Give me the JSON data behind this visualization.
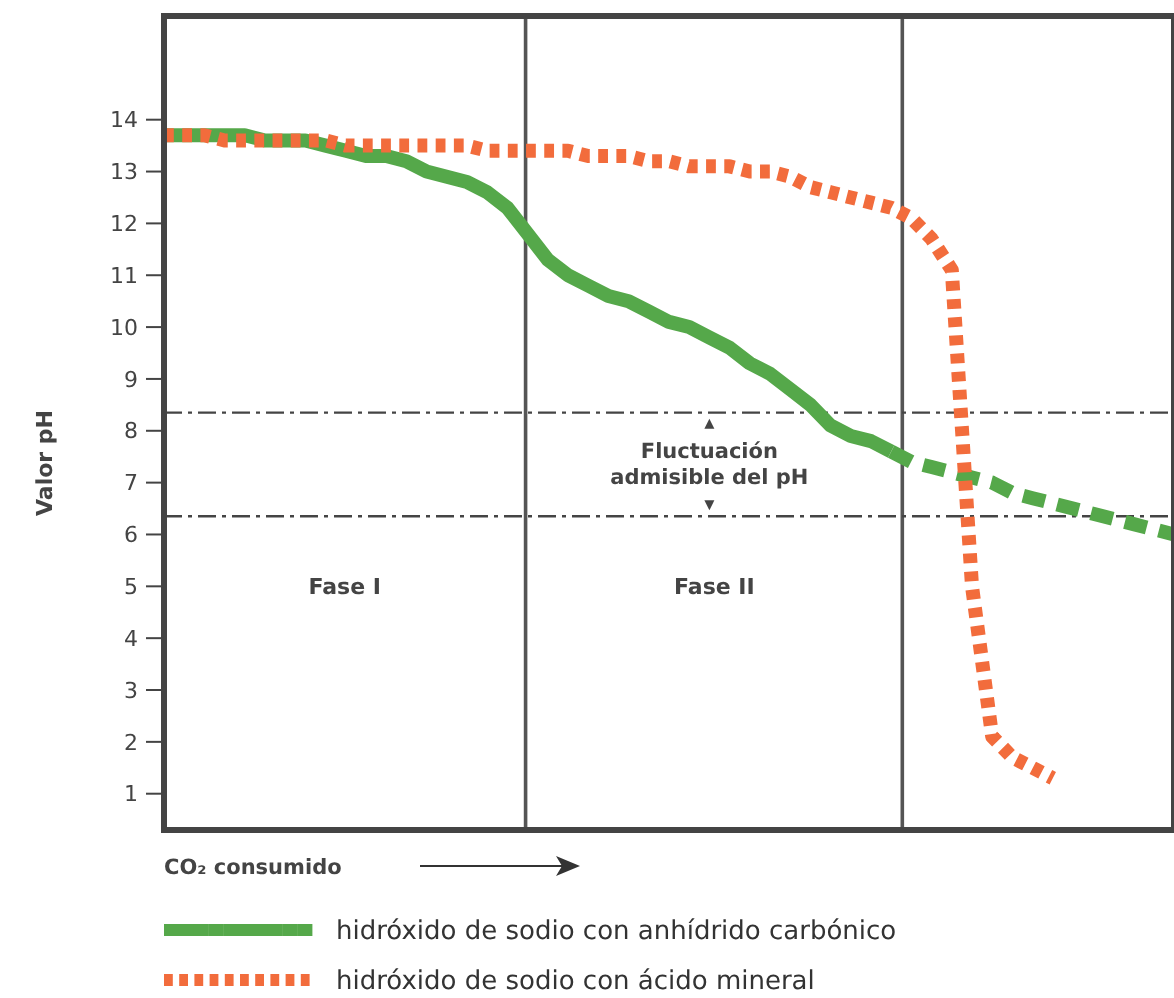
{
  "chart_data": {
    "type": "line",
    "xlabel": "CO₂ consumido",
    "ylabel": "Valor pH",
    "categories": [
      null,
      null,
      null,
      null,
      null,
      null,
      null,
      null,
      null,
      null,
      null,
      null,
      null,
      null,
      null,
      null,
      null,
      null,
      null,
      null,
      null,
      null,
      null,
      null,
      null,
      null,
      null,
      null,
      null,
      null,
      null,
      null,
      null,
      null,
      null,
      null,
      null,
      null,
      null,
      null,
      null,
      null,
      null,
      null,
      null,
      null,
      null,
      null,
      null,
      null,
      null
    ],
    "ylim": [
      0.3,
      16
    ],
    "yticks": [
      1,
      2,
      3,
      4,
      5,
      6,
      7,
      8,
      9,
      10,
      11,
      12,
      13,
      14
    ],
    "grid": false,
    "legend": "bottom",
    "marker": "none",
    "series": [
      {
        "name": "hidróxido de sodio con anhídrido carbónico",
        "color": "#55a84a",
        "line_style": "solid",
        "values": [
          13.7,
          13.7,
          13.7,
          13.7,
          13.7,
          13.6,
          13.6,
          13.6,
          13.5,
          13.4,
          13.3,
          13.3,
          13.2,
          13.0,
          12.9,
          12.8,
          12.6,
          12.3,
          11.8,
          11.3,
          11.0,
          10.8,
          10.6,
          10.5,
          10.3,
          10.1,
          10.0,
          9.8,
          9.6,
          9.3,
          9.1,
          8.8,
          8.5,
          8.1,
          7.9,
          7.8,
          7.6,
          null,
          null,
          null,
          null,
          null,
          null,
          null,
          null,
          null,
          null,
          null,
          null,
          null,
          null
        ]
      },
      {
        "color": "#55a84a",
        "line_style": "dashed",
        "values": [
          null,
          null,
          null,
          null,
          null,
          null,
          null,
          null,
          null,
          null,
          null,
          null,
          null,
          null,
          null,
          null,
          null,
          null,
          null,
          null,
          null,
          null,
          null,
          null,
          null,
          null,
          null,
          null,
          null,
          null,
          null,
          null,
          null,
          null,
          null,
          null,
          7.6,
          7.4,
          7.3,
          7.2,
          7.1,
          7.0,
          6.8,
          6.7,
          6.6,
          6.5,
          6.4,
          6.3,
          6.2,
          6.1,
          6.0
        ]
      },
      {
        "name": "hidróxido de sodio con ácido mineral",
        "color": "#f26c3c",
        "line_style": "dotted",
        "values": [
          13.7,
          13.7,
          13.7,
          13.6,
          13.6,
          13.6,
          13.6,
          13.6,
          13.6,
          13.5,
          13.5,
          13.5,
          13.5,
          13.5,
          13.5,
          13.5,
          13.4,
          13.4,
          13.4,
          13.4,
          13.4,
          13.3,
          13.3,
          13.3,
          13.2,
          13.2,
          13.1,
          13.1,
          13.1,
          13.0,
          13.0,
          12.9,
          12.7,
          12.6,
          12.5,
          12.4,
          12.3,
          12.1,
          11.7,
          11.1,
          5.0,
          2.1,
          1.7,
          1.5,
          1.3,
          null,
          null,
          null,
          null,
          null,
          null
        ]
      }
    ],
    "ref_lines": [
      {
        "axis": "y",
        "value": 8.35,
        "color": "#444444",
        "line_style": "dashed"
      },
      {
        "axis": "y",
        "value": 6.35,
        "color": "#444444",
        "line_style": "dashed"
      }
    ],
    "annotations": [
      "Fase I",
      "Fase II",
      "Fluctuación admisible del pH"
    ]
  }
}
